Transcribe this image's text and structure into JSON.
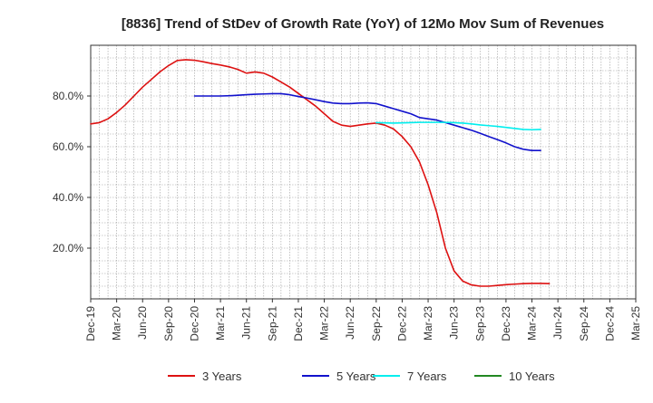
{
  "chart_data": {
    "type": "line",
    "title": "[8836]  Trend of StDev of Growth Rate (YoY) of 12Mo Mov Sum of Revenues",
    "xlabel": "",
    "ylabel": "",
    "ylim": [
      0,
      100
    ],
    "xlim": [
      "Dec-19",
      "Mar-25"
    ],
    "grid": true,
    "legend_position": "bottom",
    "x_ticks": [
      "Dec-19",
      "Mar-20",
      "Jun-20",
      "Sep-20",
      "Dec-20",
      "Mar-21",
      "Jun-21",
      "Sep-21",
      "Dec-21",
      "Mar-22",
      "Jun-22",
      "Sep-22",
      "Dec-22",
      "Mar-23",
      "Jun-23",
      "Sep-23",
      "Dec-23",
      "Mar-24",
      "Jun-24",
      "Sep-24",
      "Dec-24",
      "Mar-25"
    ],
    "y_ticks": [
      {
        "value": 20,
        "label": "20.0%"
      },
      {
        "value": 40,
        "label": "40.0%"
      },
      {
        "value": 60,
        "label": "60.0%"
      },
      {
        "value": 80,
        "label": "80.0%"
      }
    ],
    "series": [
      {
        "name": "3 Years",
        "color": "#dd1111",
        "points": [
          [
            0,
            69
          ],
          [
            1,
            69.5
          ],
          [
            2,
            71
          ],
          [
            3,
            73.5
          ],
          [
            4,
            76.5
          ],
          [
            5,
            80
          ],
          [
            6,
            83.5
          ],
          [
            7,
            86.5
          ],
          [
            8,
            89.5
          ],
          [
            9,
            92
          ],
          [
            10,
            94
          ],
          [
            11,
            94.3
          ],
          [
            12,
            94.1
          ],
          [
            13,
            93.5
          ],
          [
            14,
            92.8
          ],
          [
            15,
            92.2
          ],
          [
            16,
            91.5
          ],
          [
            17,
            90.5
          ],
          [
            18,
            89
          ],
          [
            19,
            89.5
          ],
          [
            20,
            89
          ],
          [
            21,
            87.5
          ],
          [
            22,
            85.5
          ],
          [
            23,
            83.5
          ],
          [
            24,
            81
          ],
          [
            25,
            78.5
          ],
          [
            26,
            76
          ],
          [
            27,
            73
          ],
          [
            28,
            70
          ],
          [
            29,
            68.5
          ],
          [
            30,
            68
          ],
          [
            31,
            68.5
          ],
          [
            32,
            69
          ],
          [
            33,
            69.3
          ],
          [
            34,
            68.5
          ],
          [
            35,
            67
          ],
          [
            36,
            64
          ],
          [
            37,
            60
          ],
          [
            38,
            54
          ],
          [
            39,
            45
          ],
          [
            40,
            34
          ],
          [
            41,
            20
          ],
          [
            42,
            11
          ],
          [
            43,
            7
          ],
          [
            44,
            5.5
          ],
          [
            45,
            5
          ],
          [
            46,
            5
          ],
          [
            47,
            5.3
          ],
          [
            48,
            5.6
          ],
          [
            49,
            5.8
          ],
          [
            50,
            6
          ],
          [
            51,
            6.1
          ],
          [
            52,
            6.1
          ],
          [
            53,
            6
          ]
        ]
      },
      {
        "name": "5 Years",
        "color": "#1111cc",
        "points": [
          [
            12,
            80
          ],
          [
            13,
            80
          ],
          [
            14,
            80
          ],
          [
            15,
            80
          ],
          [
            16,
            80.1
          ],
          [
            17,
            80.3
          ],
          [
            18,
            80.5
          ],
          [
            19,
            80.7
          ],
          [
            20,
            80.8
          ],
          [
            21,
            80.9
          ],
          [
            22,
            80.9
          ],
          [
            23,
            80.5
          ],
          [
            24,
            79.8
          ],
          [
            25,
            79.2
          ],
          [
            26,
            78.5
          ],
          [
            27,
            77.8
          ],
          [
            28,
            77.2
          ],
          [
            29,
            77
          ],
          [
            30,
            77
          ],
          [
            31,
            77.2
          ],
          [
            32,
            77.3
          ],
          [
            33,
            77
          ],
          [
            34,
            76
          ],
          [
            35,
            75
          ],
          [
            36,
            74
          ],
          [
            37,
            73
          ],
          [
            38,
            71.5
          ],
          [
            39,
            71
          ],
          [
            40,
            70.5
          ],
          [
            41,
            69.5
          ],
          [
            42,
            68.5
          ],
          [
            43,
            67.5
          ],
          [
            44,
            66.5
          ],
          [
            45,
            65.3
          ],
          [
            46,
            64
          ],
          [
            47,
            62.8
          ],
          [
            48,
            61.5
          ],
          [
            49,
            60
          ],
          [
            50,
            59
          ],
          [
            51,
            58.5
          ],
          [
            52,
            58.5
          ]
        ]
      },
      {
        "name": "7 Years",
        "color": "#00eeee",
        "points": [
          [
            33,
            69.5
          ],
          [
            34,
            69.4
          ],
          [
            35,
            69.3
          ],
          [
            36,
            69.4
          ],
          [
            37,
            69.5
          ],
          [
            38,
            69.6
          ],
          [
            39,
            69.6
          ],
          [
            40,
            69.6
          ],
          [
            41,
            69.6
          ],
          [
            42,
            69.5
          ],
          [
            43,
            69.3
          ],
          [
            44,
            69
          ],
          [
            45,
            68.6
          ],
          [
            46,
            68.3
          ],
          [
            47,
            68
          ],
          [
            48,
            67.6
          ],
          [
            49,
            67.2
          ],
          [
            50,
            66.8
          ],
          [
            51,
            66.7
          ],
          [
            52,
            66.8
          ]
        ]
      },
      {
        "name": "10 Years",
        "color": "#228822",
        "points": []
      }
    ]
  }
}
